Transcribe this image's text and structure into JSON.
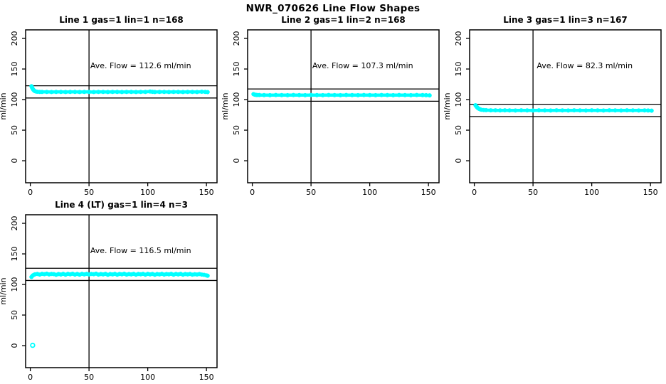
{
  "page": {
    "title": "NWR_070626  Line Flow Shapes"
  },
  "chart_data": [
    {
      "type": "scatter",
      "title": "Line 1 gas=1 lin=1 n=168",
      "annotation": "Ave. Flow =  112.6  ml/min",
      "ave_flow": 112.6,
      "n": 168,
      "xlabel": "",
      "ylabel": "ml/min",
      "xlim": [
        -4,
        159
      ],
      "ylim": [
        -36,
        214
      ],
      "xticks": [
        0,
        50,
        100,
        150
      ],
      "yticks": [
        0,
        50,
        100,
        150,
        200
      ],
      "vline_x": 50,
      "hlines": [
        122.6,
        102.6
      ],
      "marker_color": "#00FFFF",
      "line_color": "#000000",
      "grid": false,
      "position": [
        0,
        0
      ],
      "points": [
        [
          1,
          121.8
        ],
        [
          1.5,
          119.6
        ],
        [
          2,
          117.8
        ],
        [
          2.6,
          116.0
        ],
        [
          3.3,
          114.6
        ],
        [
          4,
          113.7
        ],
        [
          5,
          113.1
        ],
        [
          6,
          112.8
        ],
        [
          8,
          112.6
        ],
        [
          10,
          112.5
        ],
        [
          14,
          112.6
        ],
        [
          18,
          112.4
        ],
        [
          22,
          112.6
        ],
        [
          26,
          112.5
        ],
        [
          30,
          112.4
        ],
        [
          34,
          112.6
        ],
        [
          38,
          112.5
        ],
        [
          42,
          112.4
        ],
        [
          46,
          112.6
        ],
        [
          50,
          112.5
        ],
        [
          54,
          112.4
        ],
        [
          58,
          112.6
        ],
        [
          62,
          112.5
        ],
        [
          66,
          112.4
        ],
        [
          70,
          112.6
        ],
        [
          74,
          112.5
        ],
        [
          78,
          112.4
        ],
        [
          82,
          112.6
        ],
        [
          86,
          112.5
        ],
        [
          90,
          112.4
        ],
        [
          94,
          112.6
        ],
        [
          98,
          112.5
        ],
        [
          102,
          113.1
        ],
        [
          104,
          112.7
        ],
        [
          106,
          112.4
        ],
        [
          110,
          112.6
        ],
        [
          114,
          112.5
        ],
        [
          118,
          112.4
        ],
        [
          122,
          112.6
        ],
        [
          126,
          112.5
        ],
        [
          130,
          112.4
        ],
        [
          134,
          112.6
        ],
        [
          138,
          112.5
        ],
        [
          142,
          112.4
        ],
        [
          146,
          112.8
        ],
        [
          149,
          112.5
        ],
        [
          151,
          112.2
        ]
      ],
      "outliers": []
    },
    {
      "type": "scatter",
      "title": "Line 2 gas=1 lin=2 n=168",
      "annotation": "Ave. Flow =  107.3  ml/min",
      "ave_flow": 107.3,
      "n": 168,
      "xlabel": "",
      "ylabel": "ml/min",
      "xlim": [
        -4,
        159
      ],
      "ylim": [
        -36,
        214
      ],
      "xticks": [
        0,
        50,
        100,
        150
      ],
      "yticks": [
        0,
        50,
        100,
        150,
        200
      ],
      "vline_x": 50,
      "hlines": [
        117.3,
        97.3
      ],
      "marker_color": "#00FFFF",
      "line_color": "#000000",
      "grid": false,
      "position": [
        0,
        1
      ],
      "points": [
        [
          1,
          108.9
        ],
        [
          2,
          108.1
        ],
        [
          3,
          107.7
        ],
        [
          4,
          107.5
        ],
        [
          6,
          107.4
        ],
        [
          10,
          107.3
        ],
        [
          15,
          107.2
        ],
        [
          20,
          107.4
        ],
        [
          25,
          107.3
        ],
        [
          30,
          107.2
        ],
        [
          35,
          107.4
        ],
        [
          40,
          107.3
        ],
        [
          45,
          107.2
        ],
        [
          50,
          107.4
        ],
        [
          55,
          107.3
        ],
        [
          60,
          107.2
        ],
        [
          65,
          107.4
        ],
        [
          70,
          107.3
        ],
        [
          75,
          107.2
        ],
        [
          80,
          107.4
        ],
        [
          85,
          107.3
        ],
        [
          90,
          107.2
        ],
        [
          95,
          107.4
        ],
        [
          100,
          107.3
        ],
        [
          105,
          107.2
        ],
        [
          110,
          107.4
        ],
        [
          115,
          107.3
        ],
        [
          120,
          107.2
        ],
        [
          125,
          107.4
        ],
        [
          130,
          107.3
        ],
        [
          135,
          107.2
        ],
        [
          140,
          107.4
        ],
        [
          145,
          107.3
        ],
        [
          148,
          107.1
        ],
        [
          151,
          106.9
        ]
      ],
      "outliers": []
    },
    {
      "type": "scatter",
      "title": "Line 3 gas=1 lin=3 n=167",
      "annotation": "Ave. Flow =  82.3  ml/min",
      "ave_flow": 82.3,
      "n": 167,
      "xlabel": "",
      "ylabel": "ml/min",
      "xlim": [
        -4,
        159
      ],
      "ylim": [
        -36,
        214
      ],
      "xticks": [
        0,
        50,
        100,
        150
      ],
      "yticks": [
        0,
        50,
        100,
        150,
        200
      ],
      "vline_x": 50,
      "hlines": [
        92.3,
        72.3
      ],
      "marker_color": "#00FFFF",
      "line_color": "#000000",
      "grid": false,
      "position": [
        0,
        2
      ],
      "points": [
        [
          1,
          90.8
        ],
        [
          1.6,
          89.4
        ],
        [
          2.3,
          87.6
        ],
        [
          3,
          86.2
        ],
        [
          4,
          84.9
        ],
        [
          5,
          84.0
        ],
        [
          6,
          83.4
        ],
        [
          8,
          82.9
        ],
        [
          10,
          82.7
        ],
        [
          14,
          82.5
        ],
        [
          18,
          82.4
        ],
        [
          22,
          82.3
        ],
        [
          26,
          82.4
        ],
        [
          30,
          82.3
        ],
        [
          35,
          82.2
        ],
        [
          40,
          82.4
        ],
        [
          45,
          82.3
        ],
        [
          50,
          82.2
        ],
        [
          55,
          82.4
        ],
        [
          60,
          82.3
        ],
        [
          65,
          82.2
        ],
        [
          70,
          82.4
        ],
        [
          75,
          82.3
        ],
        [
          80,
          82.2
        ],
        [
          85,
          82.4
        ],
        [
          90,
          82.3
        ],
        [
          95,
          82.2
        ],
        [
          100,
          82.4
        ],
        [
          105,
          82.3
        ],
        [
          110,
          82.2
        ],
        [
          115,
          82.4
        ],
        [
          120,
          82.3
        ],
        [
          125,
          82.2
        ],
        [
          130,
          82.4
        ],
        [
          135,
          82.3
        ],
        [
          140,
          82.2
        ],
        [
          145,
          82.3
        ],
        [
          148,
          82.1
        ],
        [
          151,
          81.9
        ]
      ],
      "outliers": []
    },
    {
      "type": "scatter",
      "title": "Line 4 (LT) gas=1 lin=4 n=3",
      "annotation": "Ave. Flow =  116.5  ml/min",
      "ave_flow": 116.5,
      "n": 3,
      "xlabel": "",
      "ylabel": "ml/min",
      "xlim": [
        -4,
        159
      ],
      "ylim": [
        -36,
        214
      ],
      "xticks": [
        0,
        50,
        100,
        150
      ],
      "yticks": [
        0,
        50,
        100,
        150,
        200
      ],
      "vline_x": 50,
      "hlines": [
        126.5,
        106.5
      ],
      "marker_color": "#00FFFF",
      "line_color": "#000000",
      "grid": false,
      "position": [
        1,
        0
      ],
      "points": [
        [
          1,
          112.2
        ],
        [
          2,
          114.6
        ],
        [
          3,
          115.8
        ],
        [
          4,
          116.6
        ],
        [
          6,
          117.2
        ],
        [
          8,
          116.2
        ],
        [
          10,
          117.4
        ],
        [
          12,
          116.8
        ],
        [
          14,
          117.6
        ],
        [
          16,
          116.4
        ],
        [
          18,
          117.2
        ],
        [
          20,
          116.9
        ],
        [
          22,
          115.9
        ],
        [
          24,
          117.1
        ],
        [
          26,
          116.3
        ],
        [
          28,
          117.4
        ],
        [
          30,
          116.1
        ],
        [
          32,
          117.3
        ],
        [
          34,
          116.6
        ],
        [
          36,
          117.5
        ],
        [
          38,
          116.2
        ],
        [
          40,
          117.2
        ],
        [
          42,
          116.0
        ],
        [
          44,
          117.3
        ],
        [
          46,
          116.5
        ],
        [
          48,
          117.4
        ],
        [
          50,
          116.3
        ],
        [
          52,
          117.2
        ],
        [
          54,
          116.8
        ],
        [
          56,
          117.6
        ],
        [
          58,
          116.2
        ],
        [
          60,
          117.0
        ],
        [
          62,
          116.4
        ],
        [
          64,
          117.3
        ],
        [
          66,
          115.9
        ],
        [
          68,
          117.1
        ],
        [
          70,
          116.5
        ],
        [
          72,
          117.4
        ],
        [
          74,
          116.1
        ],
        [
          76,
          117.2
        ],
        [
          78,
          116.6
        ],
        [
          80,
          117.5
        ],
        [
          82,
          116.2
        ],
        [
          84,
          117.1
        ],
        [
          86,
          116.4
        ],
        [
          88,
          117.3
        ],
        [
          90,
          116.0
        ],
        [
          92,
          117.2
        ],
        [
          94,
          116.6
        ],
        [
          96,
          117.4
        ],
        [
          98,
          116.1
        ],
        [
          100,
          117.3
        ],
        [
          102,
          116.5
        ],
        [
          104,
          117.2
        ],
        [
          106,
          115.9
        ],
        [
          108,
          117.0
        ],
        [
          110,
          116.4
        ],
        [
          112,
          117.3
        ],
        [
          114,
          116.2
        ],
        [
          116,
          117.1
        ],
        [
          118,
          116.6
        ],
        [
          120,
          117.4
        ],
        [
          122,
          116.0
        ],
        [
          124,
          117.2
        ],
        [
          126,
          116.5
        ],
        [
          128,
          117.3
        ],
        [
          130,
          116.1
        ],
        [
          132,
          117.0
        ],
        [
          134,
          116.4
        ],
        [
          136,
          117.2
        ],
        [
          138,
          116.0
        ],
        [
          140,
          116.8
        ],
        [
          142,
          116.3
        ],
        [
          144,
          117.0
        ],
        [
          146,
          116.2
        ],
        [
          148,
          115.8
        ],
        [
          150,
          114.9
        ],
        [
          151,
          114.3
        ]
      ],
      "outliers": [
        [
          2,
          0.5
        ]
      ]
    }
  ]
}
